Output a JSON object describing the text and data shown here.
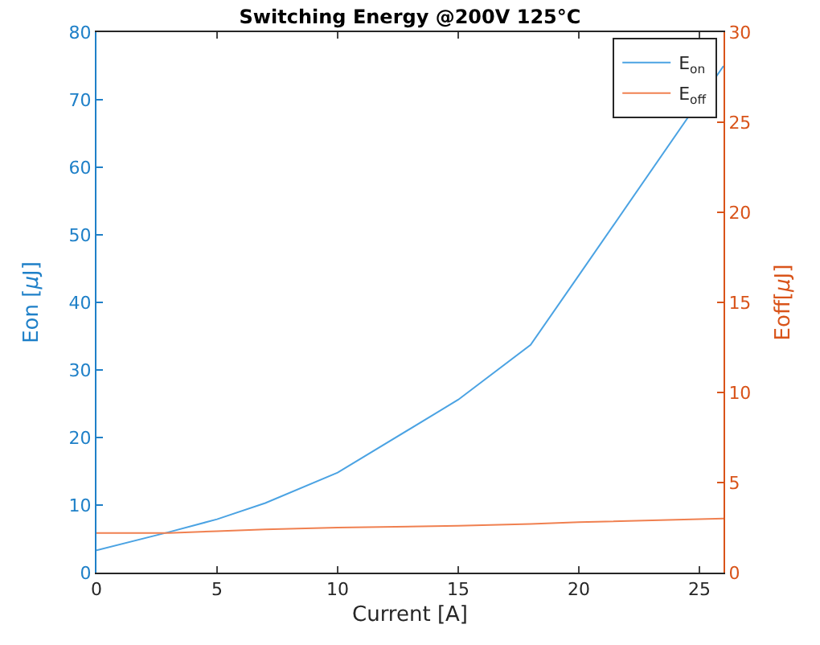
{
  "chart_data": {
    "type": "line",
    "title": "Switching Energy @200V 125°C",
    "xlabel": "Current [A]",
    "ylabel": "Eon [μJ]",
    "y2label": "Eoff[μJ]",
    "x": [
      0,
      3,
      5,
      7,
      10,
      15,
      18,
      20,
      26
    ],
    "series": [
      {
        "name": "E$_{on}$",
        "color": "#4ba3e3",
        "values": [
          3.3,
          6.0,
          7.9,
          10.3,
          14.8,
          25.6,
          33.7,
          44.0,
          75.0
        ]
      },
      {
        "name": "E$_{off}$",
        "color": "#f08050",
        "axis": "y2",
        "values": [
          2.2,
          2.2,
          2.3,
          2.4,
          2.5,
          2.6,
          2.7,
          2.8,
          3.0
        ]
      }
    ],
    "xlim": [
      0,
      26
    ],
    "xticks": [
      0,
      5,
      10,
      15,
      20,
      25
    ],
    "ylim": [
      0,
      80
    ],
    "yticks": [
      0,
      10,
      20,
      30,
      40,
      50,
      60,
      70,
      80
    ],
    "y2lim": [
      0,
      30
    ],
    "y2ticks": [
      0,
      5,
      10,
      15,
      20,
      25,
      30
    ],
    "legend": "top right",
    "line_style": "solid",
    "marker": "none"
  }
}
